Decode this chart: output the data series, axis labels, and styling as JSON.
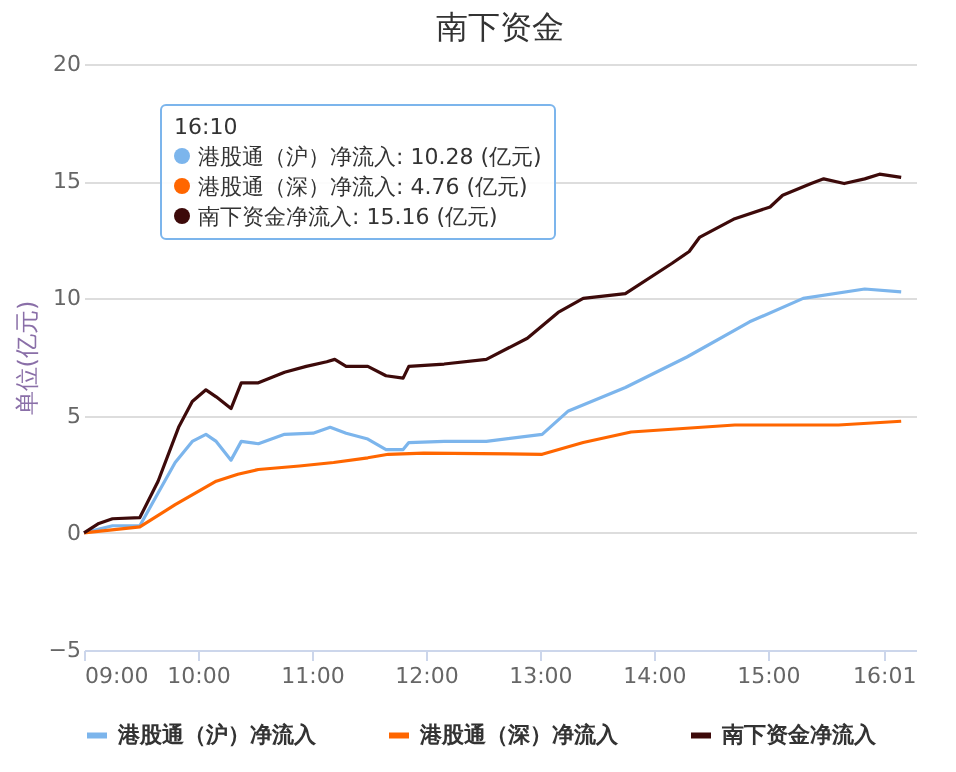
{
  "chart_data": {
    "type": "line",
    "title": "南下资金",
    "ylabel": "单位(亿元)",
    "xlim": [
      9,
      16.3
    ],
    "xticks": [
      {
        "value": 9,
        "label": "09:00"
      },
      {
        "value": 10,
        "label": "10:00"
      },
      {
        "value": 11,
        "label": "11:00"
      },
      {
        "value": 12,
        "label": "12:00"
      },
      {
        "value": 13,
        "label": "13:00"
      },
      {
        "value": 14,
        "label": "14:00"
      },
      {
        "value": 15,
        "label": "15:00"
      },
      {
        "value": 16.0167,
        "label": "16:01"
      }
    ],
    "ylim": [
      -5,
      20
    ],
    "yticks": [
      -5,
      0,
      5,
      10,
      15,
      20
    ],
    "grid": "y",
    "legend": "bottom",
    "marker": "none",
    "line_style": "solid",
    "annotations": [
      "16:10",
      "港股通（沪）净流入: 10.28 (亿元)",
      "港股通（深）净流入: 4.76 (亿元)",
      "南下资金净流入: 15.16 (亿元)"
    ],
    "series": [
      {
        "name": "港股通（沪）净流入",
        "color": "#7cb5ec",
        "x": [
          9.0,
          9.25,
          9.49,
          9.65,
          9.8,
          9.95,
          10.07,
          10.16,
          10.29,
          10.38,
          10.53,
          10.76,
          11.01,
          11.16,
          11.3,
          11.49,
          11.65,
          11.8,
          11.85,
          12.16,
          12.53,
          13.02,
          13.25,
          13.75,
          14.29,
          14.84,
          15.31,
          15.85,
          16.17
        ],
        "values": [
          0,
          0.3,
          0.3,
          1.7,
          3.0,
          3.9,
          4.2,
          3.9,
          3.1,
          3.9,
          3.8,
          4.2,
          4.25,
          4.5,
          4.25,
          4.0,
          3.55,
          3.55,
          3.85,
          3.9,
          3.9,
          4.2,
          5.2,
          6.2,
          7.5,
          9.0,
          10.0,
          10.4,
          10.28
        ]
      },
      {
        "name": "港股通（深）净流入",
        "color": "#ff6600",
        "x": [
          9.0,
          9.49,
          9.8,
          9.98,
          10.16,
          10.35,
          10.53,
          10.89,
          11.19,
          11.49,
          11.67,
          11.98,
          13.02,
          13.38,
          13.8,
          14.71,
          15.62,
          16.17
        ],
        "values": [
          0,
          0.25,
          1.2,
          1.7,
          2.2,
          2.5,
          2.7,
          2.85,
          3.0,
          3.2,
          3.35,
          3.4,
          3.35,
          3.85,
          4.3,
          4.6,
          4.6,
          4.76
        ]
      },
      {
        "name": "南下资金净流入",
        "color": "#3d0a0a",
        "x": [
          9.0,
          9.13,
          9.25,
          9.49,
          9.65,
          9.83,
          9.95,
          10.07,
          10.16,
          10.29,
          10.38,
          10.53,
          10.76,
          10.95,
          11.13,
          11.2,
          11.3,
          11.49,
          11.65,
          11.8,
          11.85,
          12.16,
          12.53,
          12.89,
          13.16,
          13.38,
          13.75,
          14.16,
          14.31,
          14.4,
          14.71,
          15.02,
          15.13,
          15.38,
          15.49,
          15.67,
          15.85,
          15.98,
          16.17
        ],
        "values": [
          0,
          0.4,
          0.6,
          0.65,
          2.2,
          4.5,
          5.6,
          6.1,
          5.8,
          5.3,
          6.4,
          6.4,
          6.85,
          7.1,
          7.3,
          7.4,
          7.1,
          7.1,
          6.7,
          6.6,
          7.1,
          7.2,
          7.4,
          8.3,
          9.4,
          10.0,
          10.2,
          11.5,
          12.0,
          12.6,
          13.4,
          13.9,
          14.4,
          14.9,
          15.1,
          14.9,
          15.1,
          15.3,
          15.16
        ]
      }
    ]
  }
}
